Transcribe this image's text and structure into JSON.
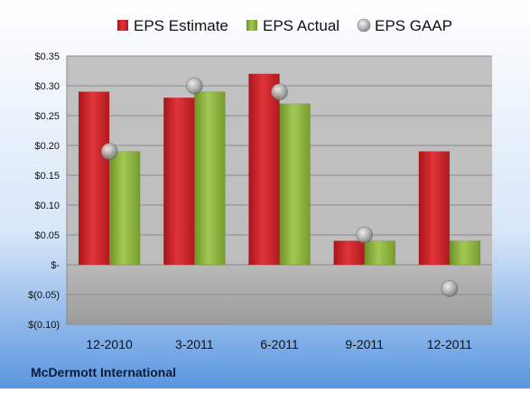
{
  "chart_data": {
    "type": "bar",
    "company": "McDermott International",
    "categories": [
      "12-2010",
      "3-2011",
      "6-2011",
      "9-2011",
      "12-2011"
    ],
    "series": [
      {
        "name": "EPS Estimate",
        "kind": "bar",
        "color": "#cc1f24",
        "values": [
          0.29,
          0.28,
          0.32,
          0.04,
          0.19
        ]
      },
      {
        "name": "EPS Actual",
        "kind": "bar",
        "color": "#8db33e",
        "values": [
          0.19,
          0.29,
          0.27,
          0.04,
          0.04
        ]
      },
      {
        "name": "EPS GAAP",
        "kind": "marker",
        "color": "#b4b4b4",
        "values": [
          0.19,
          0.3,
          0.29,
          0.05,
          -0.04
        ]
      }
    ],
    "yticks": [
      "$0.35",
      "$0.30",
      "$0.25",
      "$0.20",
      "$0.15",
      "$0.10",
      "$0.05",
      "$-",
      "$(0.05)",
      "$(0.10)"
    ],
    "ylim": [
      -0.1,
      0.35
    ],
    "ystep": 0.05,
    "grid": true,
    "legend": "top"
  }
}
